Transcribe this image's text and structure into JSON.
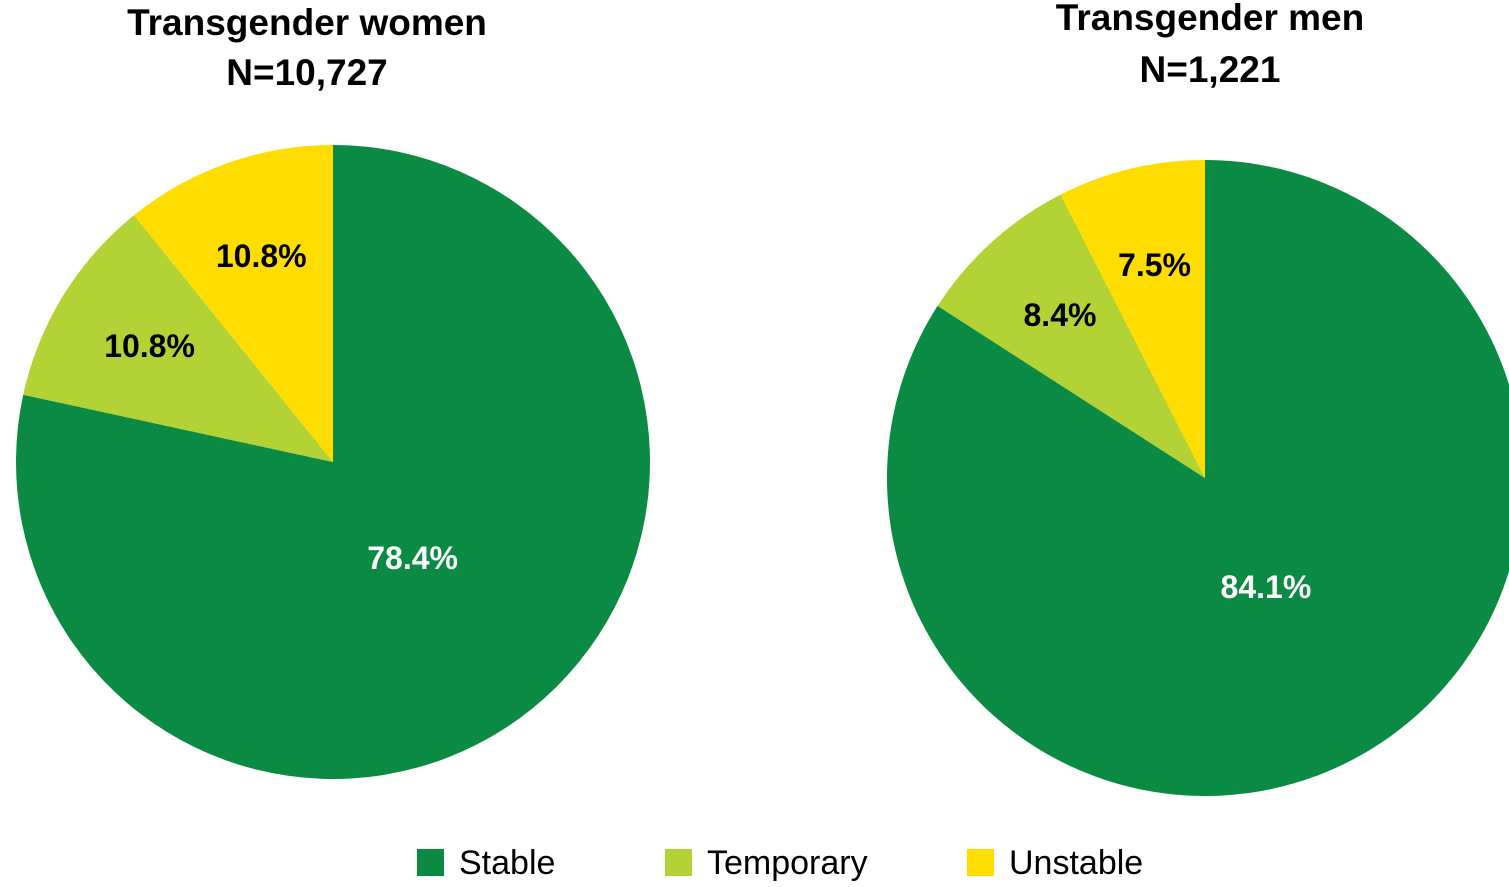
{
  "chart_data": [
    {
      "type": "pie",
      "title": "Transgender women",
      "subtitle": "N=10,727",
      "categories": [
        "Stable",
        "Temporary",
        "Unstable"
      ],
      "values": [
        78.4,
        10.8,
        10.8
      ],
      "value_labels": [
        "78.4%",
        "10.8%",
        "10.8%"
      ],
      "colors": [
        "#0a8a43",
        "#b2d235",
        "#ffdd00"
      ]
    },
    {
      "type": "pie",
      "title": "Transgender men",
      "subtitle": "N=1,221",
      "categories": [
        "Stable",
        "Temporary",
        "Unstable"
      ],
      "values": [
        84.1,
        8.4,
        7.5
      ],
      "value_labels": [
        "84.1%",
        "8.4%",
        "7.5%"
      ],
      "colors": [
        "#0a8a43",
        "#b2d235",
        "#ffdd00"
      ]
    }
  ]
}
